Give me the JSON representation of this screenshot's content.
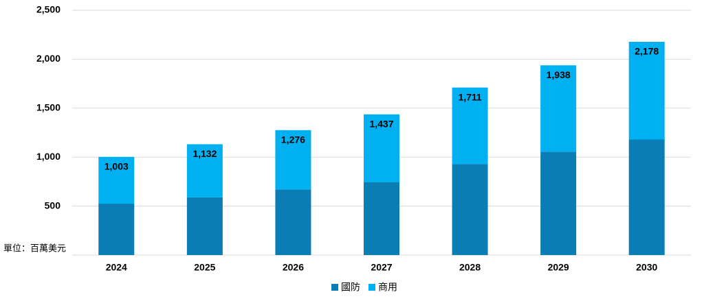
{
  "chart_data": {
    "type": "stacked-bar",
    "unit_label": "單位：百萬美元",
    "categories": [
      "2024",
      "2025",
      "2026",
      "2027",
      "2028",
      "2029",
      "2030"
    ],
    "series": [
      {
        "name": "國防",
        "color": "#0a7db5",
        "values": [
          525,
          590,
          670,
          745,
          930,
          1055,
          1180
        ]
      },
      {
        "name": "商用",
        "color": "#00b0f0",
        "values": [
          478,
          542,
          606,
          692,
          781,
          883,
          998
        ]
      }
    ],
    "totals": [
      1003,
      1132,
      1276,
      1437,
      1711,
      1938,
      2178
    ],
    "total_labels": [
      "1,003",
      "1,132",
      "1,276",
      "1,437",
      "1,711",
      "1,938",
      "2,178"
    ],
    "ylim": [
      0,
      2500
    ],
    "yticks": [
      500,
      {
        "value": 1000,
        "label": "1,000"
      },
      {
        "value": 1500,
        "label": "1,500"
      },
      {
        "value": 2000,
        "label": "2,000"
      },
      {
        "value": 2500,
        "label": "2,500"
      }
    ],
    "grid": true
  }
}
